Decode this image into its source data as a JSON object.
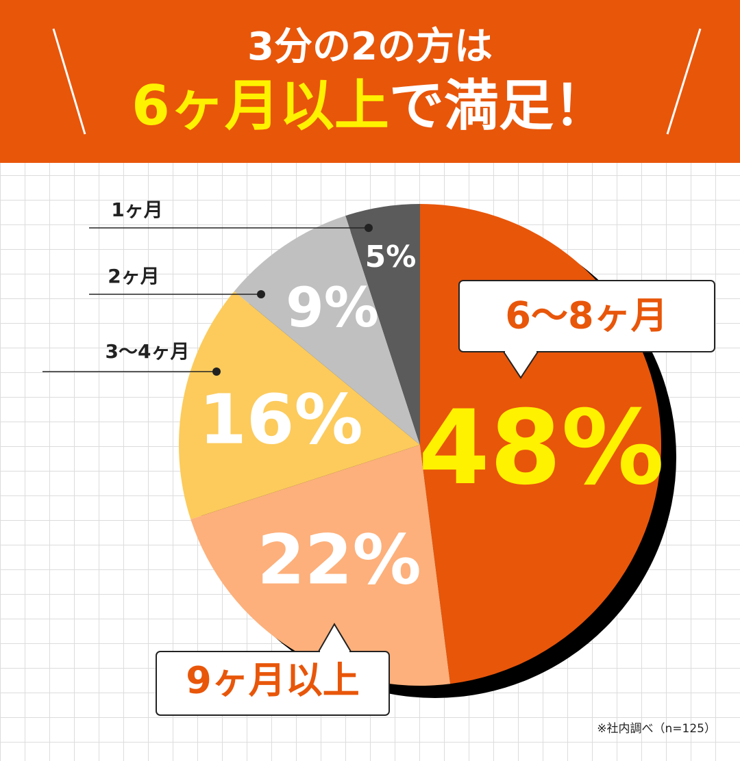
{
  "chart_data": {
    "type": "pie",
    "title": "3分の2の方は",
    "title_highlight": "6ヶ月以上",
    "title_rest": "で満足！",
    "categories": [
      "6〜8ヶ月",
      "9ヶ月以上",
      "3〜4ヶ月",
      "2ヶ月",
      "1ヶ月"
    ],
    "values": [
      48,
      22,
      16,
      9,
      5
    ],
    "value_labels": [
      "48%",
      "22%",
      "16%",
      "9%",
      "5%"
    ],
    "colors": [
      "#e8560a",
      "#fdb07b",
      "#fccb5c",
      "#c0c0c0",
      "#5b5b5b"
    ],
    "value_label_colors": [
      "#fff200",
      "#ffffff",
      "#ffffff",
      "#ffffff",
      "#ffffff"
    ],
    "annotation": "※社内調べ（n=125）"
  }
}
